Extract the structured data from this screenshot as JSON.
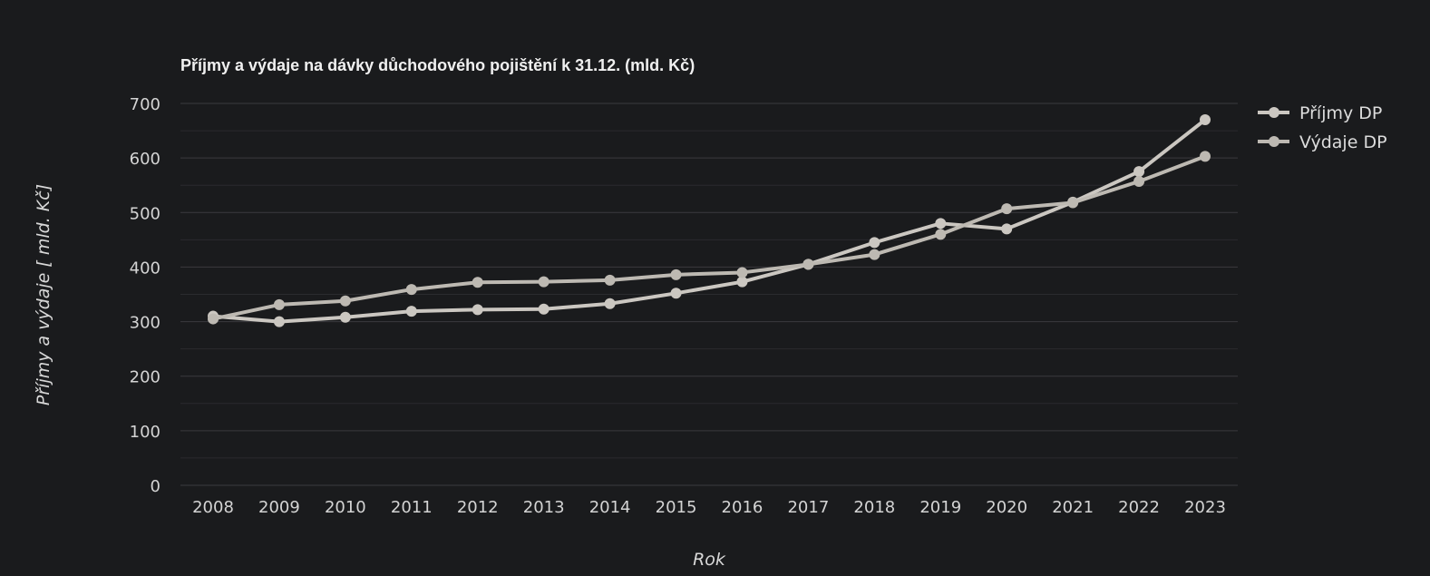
{
  "chart_data": {
    "type": "line",
    "title": "Příjmy a výdaje na dávky důchodového pojištění k 31.12. (mld. Kč)",
    "xlabel": "Rok",
    "ylabel": "Příjmy a výdaje [ mld. Kč]",
    "ylim": [
      0,
      700
    ],
    "yticks": [
      "0",
      "100",
      "200",
      "300",
      "400",
      "500",
      "600",
      "700"
    ],
    "yticks_values": [
      0,
      100,
      200,
      300,
      400,
      500,
      600,
      700
    ],
    "categories": [
      "2008",
      "2009",
      "2010",
      "2011",
      "2012",
      "2013",
      "2014",
      "2015",
      "2016",
      "2017",
      "2018",
      "2019",
      "2020",
      "2021",
      "2022",
      "2023"
    ],
    "grid": true,
    "legend_position": "top-right",
    "series": [
      {
        "name": "Příjmy DP",
        "color": "#cbc7c1",
        "values": [
          310,
          300,
          308,
          319,
          322,
          323,
          333,
          352,
          373,
          405,
          445,
          480,
          470,
          519,
          575,
          670
        ]
      },
      {
        "name": "Výdaje DP",
        "color": "#bdb9b2",
        "values": [
          305,
          331,
          338,
          359,
          372,
          373,
          376,
          386,
          390,
          405,
          423,
          460,
          507,
          518,
          557,
          603
        ]
      }
    ]
  }
}
